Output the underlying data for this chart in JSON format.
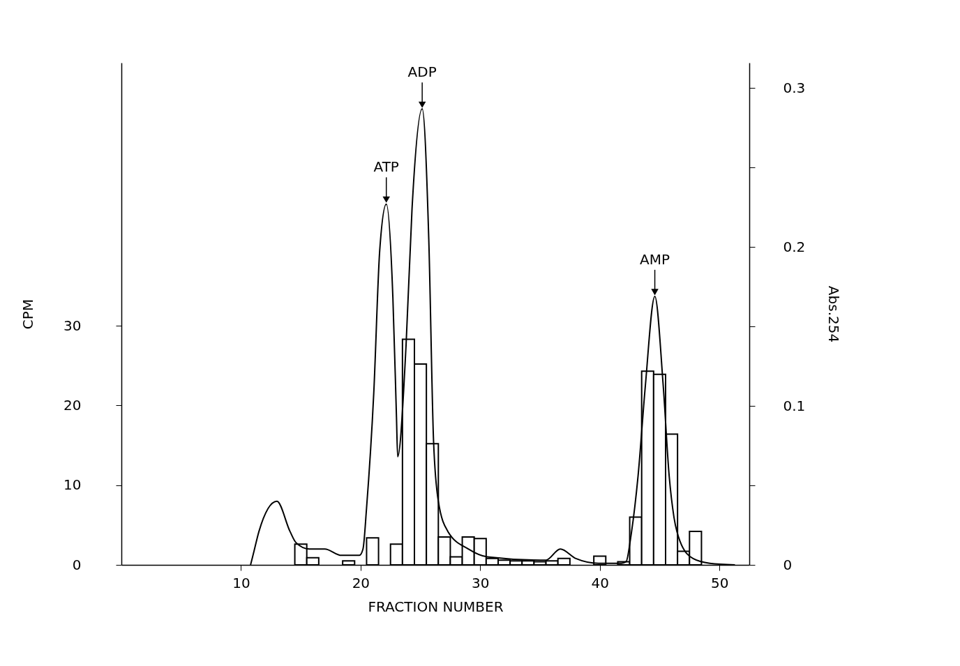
{
  "chart_data": {
    "type": "bar",
    "xlabel": "FRACTION NUMBER",
    "ylabel": "CPM",
    "y2label": "Abs.254",
    "xlim": [
      0,
      52.5
    ],
    "xticks": [
      10,
      20,
      30,
      40,
      50
    ],
    "ylim": [
      0,
      63
    ],
    "yticks": [
      0,
      10,
      20,
      30
    ],
    "y2lim": [
      0,
      0.316
    ],
    "y2ticks": [
      0,
      {
        "value": 0.05,
        "label": null
      },
      0.1,
      {
        "value": 0.15,
        "label": null
      },
      0.2,
      {
        "value": 0.25,
        "label": null
      },
      0.3
    ],
    "series": [
      {
        "color": "#000000",
        "x": [
          15,
          16,
          19,
          21,
          23,
          24,
          25,
          26,
          27,
          28,
          29,
          30,
          31,
          32,
          33,
          34,
          35,
          36,
          37,
          40,
          42,
          43,
          44,
          45,
          46,
          47,
          48
        ],
        "values": [
          2.6,
          0.9,
          0.5,
          3.4,
          2.6,
          28.3,
          25.2,
          15.2,
          3.5,
          1.0,
          3.5,
          3.3,
          0.8,
          0.6,
          0.5,
          0.5,
          0.4,
          0.5,
          0.8,
          1.1,
          0.4,
          6.0,
          24.3,
          23.9,
          16.4,
          1.7,
          4.2
        ]
      },
      {
        "type": "line",
        "axis": "y2",
        "color": "#000000",
        "x": [
          10.8,
          11.1,
          11.5,
          13.0,
          14.1,
          14.6,
          15.7,
          17.0,
          18.4,
          19.9,
          20.2,
          20.5,
          21.1,
          21.6,
          22.15,
          22.7,
          23.0,
          23.1,
          23.8,
          24.3,
          25.15,
          25.7,
          26.1,
          26.5,
          27.3,
          29.0,
          30.6,
          35.0,
          35.5,
          36.7,
          38.0,
          39.9,
          41.8,
          42.2,
          42.6,
          43.2,
          43.8,
          44.6,
          45.3,
          45.8,
          46.2,
          46.7,
          47.8,
          49.2,
          51.3
        ],
        "values": [
          0,
          0.009,
          0.021,
          0.04,
          0.021,
          0.014,
          0.01,
          0.01,
          0.006,
          0.006,
          0.01,
          0.036,
          0.108,
          0.198,
          0.227,
          0.168,
          0.093,
          0.068,
          0.138,
          0.224,
          0.287,
          0.205,
          0.078,
          0.04,
          0.021,
          0.01,
          0.005,
          0.003,
          0.003,
          0.01,
          0.004,
          0.001,
          0.001,
          0.002,
          0.018,
          0.056,
          0.112,
          0.169,
          0.113,
          0.056,
          0.03,
          0.015,
          0.004,
          0.001,
          0
        ]
      }
    ],
    "annotations": [
      {
        "text": "ATP",
        "x": 22.15,
        "y": 45.3
      },
      {
        "text": "ADP",
        "x": 25.15,
        "y": 57.2
      },
      {
        "text": "AMP",
        "x": 44.6,
        "y": 33.7
      }
    ]
  }
}
